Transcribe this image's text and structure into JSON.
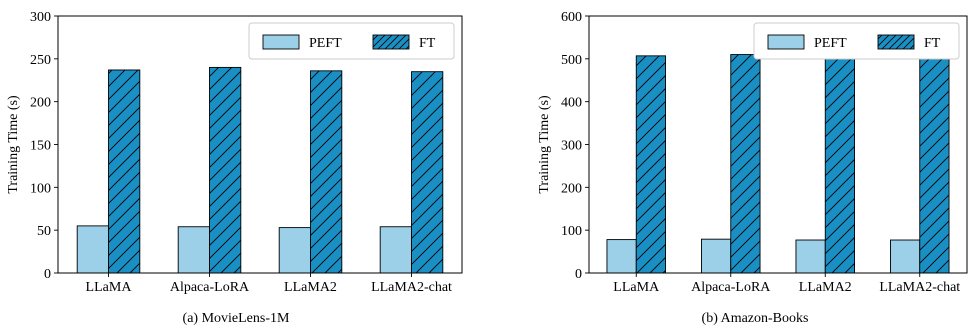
{
  "colors": {
    "peft": "#9ccfe8",
    "ft": "#1a8fc4",
    "edge": "#000000"
  },
  "chart_data": [
    {
      "type": "bar",
      "caption": "(a)  MovieLens-1M",
      "categories": [
        "LLaMA",
        "Alpaca-LoRA",
        "LLaMA2",
        "LLaMA2-chat"
      ],
      "series": [
        {
          "name": "PEFT",
          "values": [
            55,
            54,
            53,
            54
          ],
          "hatch": "none"
        },
        {
          "name": "FT",
          "values": [
            237,
            240,
            236,
            235
          ],
          "hatch": "diagonal"
        }
      ],
      "ylabel": "Training Time (s)",
      "ylim": [
        0,
        300
      ],
      "yticks": [
        0,
        50,
        100,
        150,
        200,
        250,
        300
      ],
      "legend": "top-right",
      "grid": false
    },
    {
      "type": "bar",
      "caption": "(b)  Amazon-Books",
      "categories": [
        "LLaMA",
        "Alpaca-LoRA",
        "LLaMA2",
        "LLaMA2-chat"
      ],
      "series": [
        {
          "name": "PEFT",
          "values": [
            78,
            79,
            77,
            77
          ],
          "hatch": "none"
        },
        {
          "name": "FT",
          "values": [
            507,
            510,
            506,
            505
          ],
          "hatch": "diagonal"
        }
      ],
      "ylabel": "Training Time (s)",
      "ylim": [
        0,
        600
      ],
      "yticks": [
        0,
        100,
        200,
        300,
        400,
        500,
        600
      ],
      "legend": "top-right",
      "grid": false
    }
  ]
}
